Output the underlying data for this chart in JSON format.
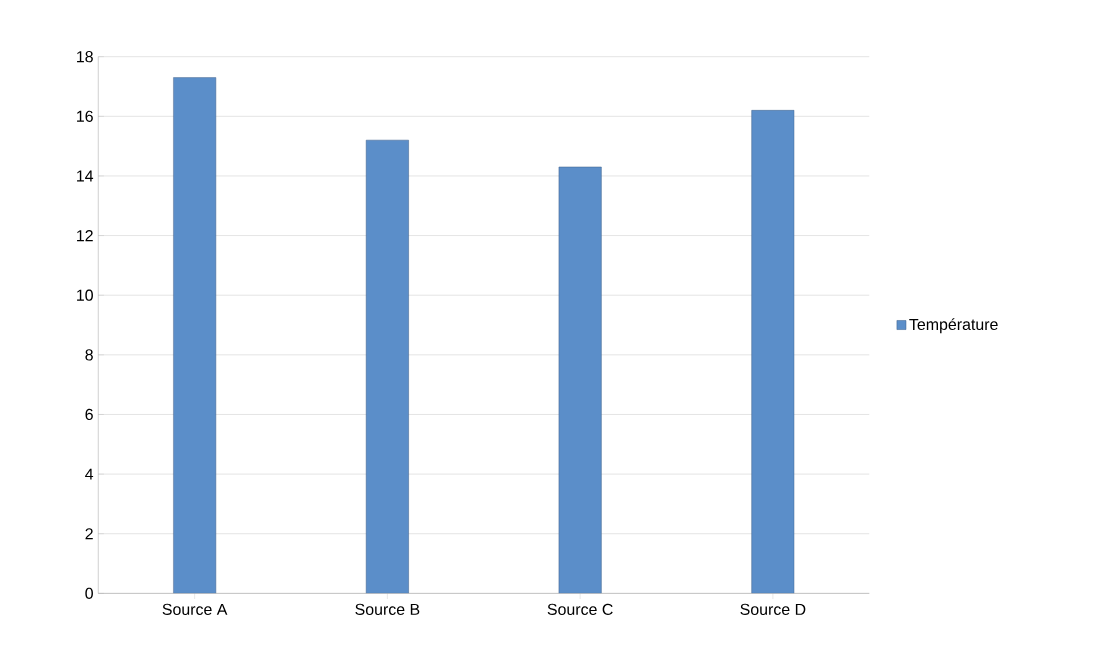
{
  "chart_data": {
    "type": "bar",
    "categories": [
      "Source A",
      "Source B",
      "Source C",
      "Source D"
    ],
    "series": [
      {
        "name": "Température",
        "color": "#5b8ec9",
        "values": [
          17.3,
          15.2,
          14.3,
          16.2
        ]
      }
    ],
    "ylim": [
      0,
      18
    ],
    "yticks": [
      0,
      2,
      4,
      6,
      8,
      10,
      12,
      14,
      16,
      18
    ],
    "grid": "y",
    "legend": "right"
  }
}
